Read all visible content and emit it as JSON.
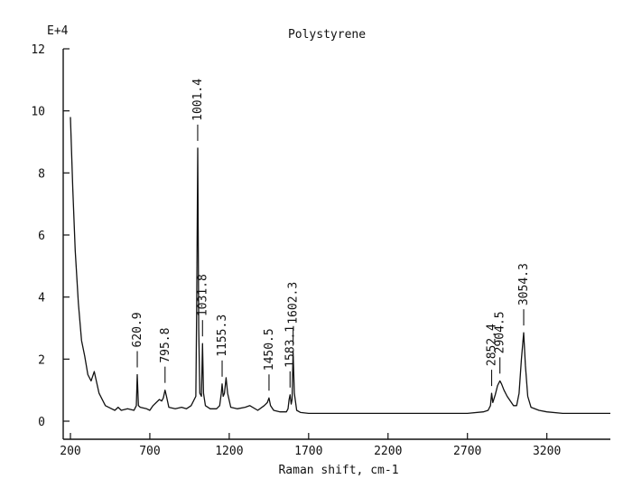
{
  "chart_data": {
    "type": "line",
    "title": "Polystyrene",
    "xlabel": "Raman shift, cm-1",
    "ylabel": "",
    "y_multiplier_label": "E+4",
    "xlim": [
      200,
      3600
    ],
    "ylim": [
      0,
      12
    ],
    "x_ticks": [
      200,
      700,
      1200,
      1700,
      2200,
      2700,
      3200
    ],
    "x_tick_labels": [
      "200",
      "700",
      "1200",
      "1700",
      "2200",
      "2700",
      "3200"
    ],
    "y_ticks": [
      0,
      2,
      4,
      6,
      8,
      10,
      12
    ],
    "y_tick_labels": [
      "0",
      "2",
      "4",
      "6",
      "8",
      "10",
      "12"
    ],
    "grid": false,
    "legend": "none",
    "line_color": "#111111",
    "series": [
      {
        "x": [
          200,
          215,
          230,
          250,
          270,
          290,
          310,
          330,
          350,
          380,
          420,
          460,
          480,
          500,
          520,
          560,
          600,
          615,
          621,
          628,
          640,
          680,
          700,
          720,
          760,
          775,
          785,
          796,
          805,
          820,
          860,
          900,
          930,
          960,
          990,
          995,
          1001.4,
          1008,
          1015,
          1025,
          1031.8,
          1038,
          1050,
          1080,
          1120,
          1140,
          1150,
          1155.3,
          1162,
          1170,
          1180,
          1190,
          1210,
          1250,
          1300,
          1330,
          1380,
          1420,
          1440,
          1450.5,
          1460,
          1480,
          1520,
          1560,
          1570,
          1577,
          1583.1,
          1590,
          1596,
          1602.3,
          1610,
          1625,
          1650,
          1700,
          1800,
          1900,
          2000,
          2100,
          2200,
          2300,
          2400,
          2500,
          2600,
          2700,
          2800,
          2830,
          2845,
          2852.4,
          2860,
          2875,
          2890,
          2904.5,
          2915,
          2930,
          2950,
          2990,
          3010,
          3025,
          3040,
          3054.3,
          3065,
          3080,
          3100,
          3150,
          3200,
          3300,
          3400,
          3500,
          3600
        ],
        "y": [
          9.8,
          7.5,
          5.5,
          3.8,
          2.6,
          2.1,
          1.5,
          1.3,
          1.6,
          0.9,
          0.5,
          0.4,
          0.35,
          0.45,
          0.35,
          0.4,
          0.35,
          0.5,
          1.5,
          0.5,
          0.45,
          0.4,
          0.35,
          0.5,
          0.7,
          0.65,
          0.75,
          1.0,
          0.8,
          0.45,
          0.4,
          0.45,
          0.4,
          0.5,
          0.8,
          3.5,
          8.8,
          3.0,
          0.9,
          0.8,
          2.5,
          0.9,
          0.5,
          0.4,
          0.4,
          0.5,
          0.9,
          1.2,
          0.8,
          0.9,
          1.4,
          0.9,
          0.45,
          0.4,
          0.45,
          0.5,
          0.35,
          0.5,
          0.6,
          0.75,
          0.5,
          0.35,
          0.3,
          0.3,
          0.4,
          0.7,
          0.85,
          0.55,
          0.7,
          2.25,
          0.9,
          0.35,
          0.28,
          0.25,
          0.25,
          0.25,
          0.25,
          0.25,
          0.25,
          0.25,
          0.25,
          0.25,
          0.25,
          0.25,
          0.3,
          0.35,
          0.5,
          0.9,
          0.6,
          0.85,
          1.15,
          1.3,
          1.2,
          1.0,
          0.8,
          0.5,
          0.5,
          0.9,
          2.0,
          2.85,
          1.8,
          0.8,
          0.45,
          0.35,
          0.3,
          0.25,
          0.25,
          0.25,
          0.25
        ]
      }
    ],
    "annotations": [
      {
        "label": "620.9",
        "x": 620.9,
        "y": 1.5
      },
      {
        "label": "795.8",
        "x": 795.8,
        "y": 1.0
      },
      {
        "label": "1001.4",
        "x": 1001.4,
        "y": 8.8
      },
      {
        "label": "1031.8",
        "x": 1031.8,
        "y": 2.5
      },
      {
        "label": "1155.3",
        "x": 1155.3,
        "y": 1.2
      },
      {
        "label": "1450.5",
        "x": 1450.5,
        "y": 0.75
      },
      {
        "label": "1583.1",
        "x": 1583.1,
        "y": 0.85
      },
      {
        "label": "1602.3",
        "x": 1602.3,
        "y": 2.25
      },
      {
        "label": "2852.4",
        "x": 2852.4,
        "y": 0.9
      },
      {
        "label": "2904.5",
        "x": 2904.5,
        "y": 1.3
      },
      {
        "label": "3054.3",
        "x": 3054.3,
        "y": 2.85
      }
    ]
  }
}
